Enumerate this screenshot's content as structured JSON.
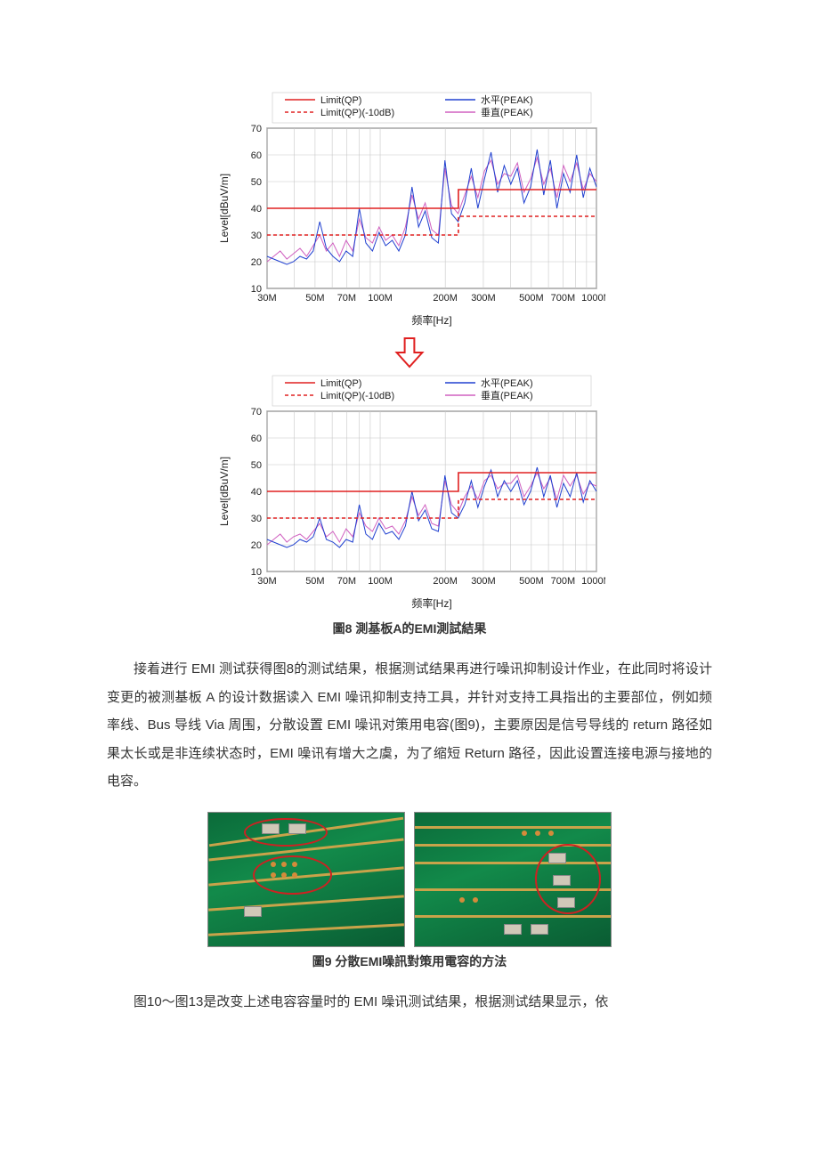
{
  "emi_chart": {
    "type": "line",
    "xlabel": "频率[Hz]",
    "ylabel": "Level[dBuV/m]",
    "legend": {
      "items": [
        {
          "label": "Limit(QP)",
          "color": "#e02020",
          "dash": "solid"
        },
        {
          "label": "Limit(QP)(-10dB)",
          "color": "#e02020",
          "dash": "4,3"
        },
        {
          "label": "水平(PEAK)",
          "color": "#2040d0",
          "dash": "solid"
        },
        {
          "label": "垂直(PEAK)",
          "color": "#d060c0",
          "dash": "solid"
        }
      ],
      "fontsize": 11
    },
    "xticks": [
      "30M",
      "50M",
      "70M",
      "100M",
      "200M",
      "300M",
      "500M",
      "700M",
      "1000M"
    ],
    "x_logpos": [
      30,
      50,
      70,
      100,
      200,
      300,
      500,
      700,
      1000
    ],
    "ylim": [
      10,
      70
    ],
    "ytick_step": 10,
    "grid_color": "#c8c8c8",
    "axis_color": "#222222",
    "background_color": "#ffffff",
    "label_fontsize": 12,
    "tick_fontsize": 11,
    "limit_qp": [
      {
        "x": 30,
        "y": 40
      },
      {
        "x": 230,
        "y": 40
      },
      {
        "x": 230,
        "y": 47
      },
      {
        "x": 1000,
        "y": 47
      }
    ],
    "limit_qp_m10": [
      {
        "x": 30,
        "y": 30
      },
      {
        "x": 230,
        "y": 30
      },
      {
        "x": 230,
        "y": 37
      },
      {
        "x": 1000,
        "y": 37
      }
    ],
    "horiz_peak_top": [
      22,
      21,
      20,
      19,
      20,
      22,
      21,
      24,
      35,
      25,
      22,
      20,
      24,
      22,
      40,
      27,
      24,
      31,
      26,
      28,
      24,
      30,
      48,
      33,
      39,
      29,
      27,
      58,
      38,
      35,
      42,
      55,
      40,
      51,
      61,
      46,
      56,
      49,
      55,
      42,
      48,
      62,
      45,
      58,
      40,
      53,
      46,
      60,
      44,
      55,
      48
    ],
    "vert_peak_top": [
      20,
      22,
      24,
      21,
      23,
      25,
      22,
      26,
      30,
      24,
      27,
      22,
      28,
      24,
      36,
      29,
      27,
      33,
      28,
      30,
      26,
      33,
      45,
      36,
      42,
      32,
      30,
      55,
      41,
      38,
      45,
      52,
      44,
      54,
      58,
      49,
      53,
      52,
      57,
      46,
      51,
      59,
      49,
      55,
      44,
      56,
      50,
      57,
      47,
      53,
      50
    ],
    "horiz_peak_bottom": [
      22,
      21,
      20,
      19,
      20,
      22,
      21,
      23,
      30,
      22,
      21,
      19,
      22,
      21,
      35,
      24,
      22,
      28,
      24,
      25,
      22,
      27,
      40,
      29,
      33,
      26,
      25,
      46,
      32,
      30,
      35,
      44,
      34,
      42,
      48,
      38,
      44,
      40,
      44,
      35,
      40,
      49,
      38,
      46,
      34,
      43,
      38,
      47,
      36,
      44,
      40
    ],
    "vert_peak_bottom": [
      20,
      22,
      24,
      21,
      23,
      24,
      22,
      25,
      28,
      23,
      25,
      21,
      26,
      23,
      32,
      27,
      25,
      30,
      26,
      27,
      24,
      29,
      38,
      31,
      35,
      28,
      27,
      44,
      35,
      32,
      38,
      42,
      37,
      44,
      46,
      41,
      43,
      43,
      46,
      38,
      42,
      47,
      41,
      45,
      37,
      46,
      42,
      46,
      39,
      43,
      42
    ]
  },
  "arrow": {
    "color": "#e02020",
    "width": 36,
    "height": 36
  },
  "fig8_caption": "圖8 測基板A的EMI測試結果",
  "paragraph1": "接着进行 EMI 测试获得图8的测试结果，根据测试结果再进行噪讯抑制设计作业，在此同时将设计变更的被测基板 A 的设计数据读入 EMI 噪讯抑制支持工具，并针对支持工具指出的主要部位，例如频率线、Bus 导线 Via 周围，分散设置 EMI 噪讯对策用电容(图9)，主要原因是信号导线的 return 路径如果太长或是非连续状态时，EMI 噪讯有增大之虞，为了缩短 Return 路径，因此设置连接电源与接地的电容。",
  "fig9_caption": "圖9 分散EMI噪訊對策用電容的方法",
  "paragraph2": "图10～图13是改变上述电容容量时的 EMI 噪讯测试结果，根据测试结果显示，依",
  "pcb": {
    "trace_color": "#c9a34a",
    "pad_color": "#d48b3a",
    "circle_color": "#cc2222",
    "bg_gradient": [
      "#0b6b3a",
      "#128a4a",
      "#0a5c33"
    ]
  }
}
